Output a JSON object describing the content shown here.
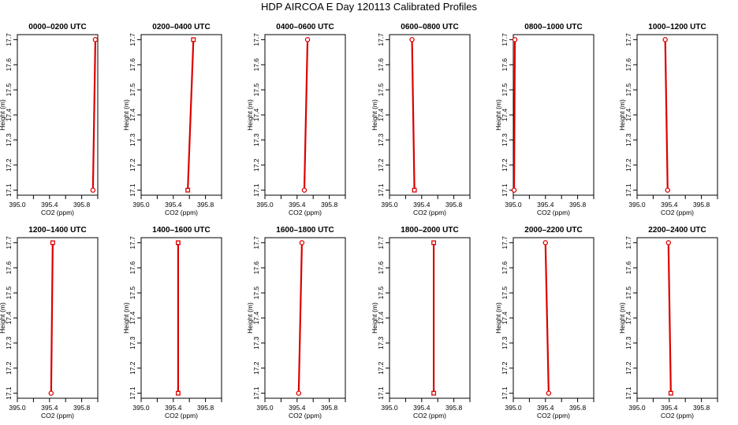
{
  "figure": {
    "title": "HDP AIRCOA E  Day 120113  Calibrated Profiles"
  },
  "chart_data": [
    {
      "type": "line",
      "title": "0000–0200 UTC",
      "xlabel": "CO2 (ppm)",
      "ylabel": "Height (m)",
      "xlim": [
        395.0,
        396.0
      ],
      "ylim": [
        17.08,
        17.72
      ],
      "xticks": [
        "395.0",
        "395.4",
        "395.8"
      ],
      "yticks": [
        "17.1",
        "17.2",
        "17.3",
        "17.4",
        "17.5",
        "17.6",
        "17.7"
      ],
      "x": [
        395.94,
        395.97
      ],
      "y": [
        17.1,
        17.7
      ],
      "marker": "circle"
    },
    {
      "type": "line",
      "title": "0200–0400 UTC",
      "xlabel": "CO2 (ppm)",
      "ylabel": "Height (m)",
      "xlim": [
        395.0,
        396.0
      ],
      "ylim": [
        17.08,
        17.72
      ],
      "xticks": [
        "395.0",
        "395.4",
        "395.8"
      ],
      "yticks": [
        "17.1",
        "17.2",
        "17.3",
        "17.4",
        "17.5",
        "17.6",
        "17.7"
      ],
      "x": [
        395.58,
        395.65
      ],
      "y": [
        17.1,
        17.7
      ],
      "marker": "square"
    },
    {
      "type": "line",
      "title": "0400–0600 UTC",
      "xlabel": "CO2 (ppm)",
      "ylabel": "Height (m)",
      "xlim": [
        395.0,
        396.0
      ],
      "ylim": [
        17.08,
        17.72
      ],
      "xticks": [
        "395.0",
        "395.4",
        "395.8"
      ],
      "yticks": [
        "17.1",
        "17.2",
        "17.3",
        "17.4",
        "17.5",
        "17.6",
        "17.7"
      ],
      "x": [
        395.49,
        395.53
      ],
      "y": [
        17.1,
        17.7
      ],
      "marker": "circle"
    },
    {
      "type": "line",
      "title": "0600–0800 UTC",
      "xlabel": "CO2 (ppm)",
      "ylabel": "Height (m)",
      "xlim": [
        395.0,
        396.0
      ],
      "ylim": [
        17.08,
        17.72
      ],
      "xticks": [
        "395.0",
        "395.4",
        "395.8"
      ],
      "yticks": [
        "17.1",
        "17.2",
        "17.3",
        "17.4",
        "17.5",
        "17.6",
        "17.7"
      ],
      "x": [
        395.31,
        395.28
      ],
      "y": [
        17.1,
        17.7
      ],
      "marker": "square_bottom"
    },
    {
      "type": "line",
      "title": "0800–1000 UTC",
      "xlabel": "CO2 (ppm)",
      "ylabel": "Height (m)",
      "xlim": [
        395.0,
        396.0
      ],
      "ylim": [
        17.08,
        17.72
      ],
      "xticks": [
        "395.0",
        "395.4",
        "395.8"
      ],
      "yticks": [
        "17.1",
        "17.2",
        "17.3",
        "17.4",
        "17.5",
        "17.6",
        "17.7"
      ],
      "x": [
        395.01,
        395.02
      ],
      "y": [
        17.1,
        17.7
      ],
      "marker": "circle"
    },
    {
      "type": "line",
      "title": "1000–1200 UTC",
      "xlabel": "CO2 (ppm)",
      "ylabel": "Height (m)",
      "xlim": [
        395.0,
        396.0
      ],
      "ylim": [
        17.08,
        17.72
      ],
      "xticks": [
        "395.0",
        "395.4",
        "395.8"
      ],
      "yticks": [
        "17.1",
        "17.2",
        "17.3",
        "17.4",
        "17.5",
        "17.6",
        "17.7"
      ],
      "x": [
        395.38,
        395.35
      ],
      "y": [
        17.1,
        17.7
      ],
      "marker": "circle"
    },
    {
      "type": "line",
      "title": "1200–1400 UTC",
      "xlabel": "CO2 (ppm)",
      "ylabel": "Height (m)",
      "xlim": [
        395.0,
        396.0
      ],
      "ylim": [
        17.08,
        17.72
      ],
      "xticks": [
        "395.0",
        "395.4",
        "395.8"
      ],
      "yticks": [
        "17.1",
        "17.2",
        "17.3",
        "17.4",
        "17.5",
        "17.6",
        "17.7"
      ],
      "x": [
        395.42,
        395.44
      ],
      "y": [
        17.1,
        17.7
      ],
      "marker": "circle_bottom"
    },
    {
      "type": "line",
      "title": "1400–1600 UTC",
      "xlabel": "CO2 (ppm)",
      "ylabel": "Height (m)",
      "xlim": [
        395.0,
        396.0
      ],
      "ylim": [
        17.08,
        17.72
      ],
      "xticks": [
        "395.0",
        "395.4",
        "395.8"
      ],
      "yticks": [
        "17.1",
        "17.2",
        "17.3",
        "17.4",
        "17.5",
        "17.6",
        "17.7"
      ],
      "x": [
        395.46,
        395.46
      ],
      "y": [
        17.1,
        17.7
      ],
      "marker": "square"
    },
    {
      "type": "line",
      "title": "1600–1800 UTC",
      "xlabel": "CO2 (ppm)",
      "ylabel": "Height (m)",
      "xlim": [
        395.0,
        396.0
      ],
      "ylim": [
        17.08,
        17.72
      ],
      "xticks": [
        "395.0",
        "395.4",
        "395.8"
      ],
      "yticks": [
        "17.1",
        "17.2",
        "17.3",
        "17.4",
        "17.5",
        "17.6",
        "17.7"
      ],
      "x": [
        395.42,
        395.46
      ],
      "y": [
        17.1,
        17.7
      ],
      "marker": "circle"
    },
    {
      "type": "line",
      "title": "1800–2000 UTC",
      "xlabel": "CO2 (ppm)",
      "ylabel": "Height (m)",
      "xlim": [
        395.0,
        396.0
      ],
      "ylim": [
        17.08,
        17.72
      ],
      "xticks": [
        "395.0",
        "395.4",
        "395.8"
      ],
      "yticks": [
        "17.1",
        "17.2",
        "17.3",
        "17.4",
        "17.5",
        "17.6",
        "17.7"
      ],
      "x": [
        395.55,
        395.55
      ],
      "y": [
        17.1,
        17.7
      ],
      "marker": "square"
    },
    {
      "type": "line",
      "title": "2000–2200 UTC",
      "xlabel": "CO2 (ppm)",
      "ylabel": "Height (m)",
      "xlim": [
        395.0,
        396.0
      ],
      "ylim": [
        17.08,
        17.72
      ],
      "xticks": [
        "395.0",
        "395.4",
        "395.8"
      ],
      "yticks": [
        "17.1",
        "17.2",
        "17.3",
        "17.4",
        "17.5",
        "17.6",
        "17.7"
      ],
      "x": [
        395.44,
        395.4
      ],
      "y": [
        17.1,
        17.7
      ],
      "marker": "circle"
    },
    {
      "type": "line",
      "title": "2200–2400 UTC",
      "xlabel": "CO2 (ppm)",
      "ylabel": "Height (m)",
      "xlim": [
        395.0,
        396.0
      ],
      "ylim": [
        17.08,
        17.72
      ],
      "xticks": [
        "395.0",
        "395.4",
        "395.8"
      ],
      "yticks": [
        "17.1",
        "17.2",
        "17.3",
        "17.4",
        "17.5",
        "17.6",
        "17.7"
      ],
      "x": [
        395.42,
        395.39
      ],
      "y": [
        17.1,
        17.7
      ],
      "marker": "square_bottom"
    }
  ],
  "colors": {
    "profile_line": "#dd0000",
    "axis": "#000000",
    "background": "#ffffff"
  }
}
